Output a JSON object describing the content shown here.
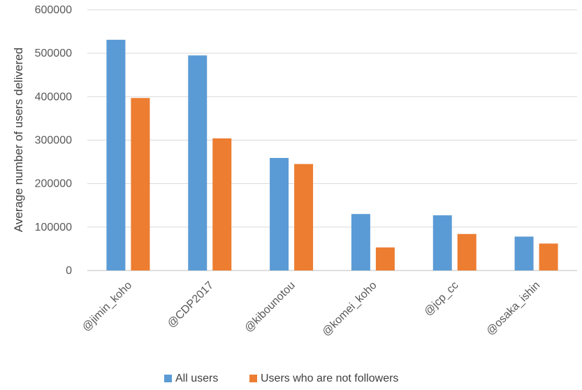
{
  "chart_data": {
    "type": "bar",
    "title": "",
    "xlabel": "",
    "ylabel": "Average number of users delivered",
    "ylim": [
      0,
      600000
    ],
    "yticks": [
      0,
      100000,
      200000,
      300000,
      400000,
      500000,
      600000
    ],
    "grid": true,
    "legend_position": "bottom",
    "categories": [
      "@jimin_koho",
      "@CDP2017",
      "@kibounotou",
      "@komei_koho",
      "@jcp_cc",
      "@osaka_ishin"
    ],
    "series": [
      {
        "name": "All users",
        "color": "#5b9bd5",
        "values": [
          531000,
          495000,
          259000,
          130000,
          127000,
          78000
        ]
      },
      {
        "name": "Users who are not followers",
        "color": "#ed7d31",
        "values": [
          397000,
          304000,
          245000,
          53000,
          84000,
          62000
        ]
      }
    ]
  }
}
